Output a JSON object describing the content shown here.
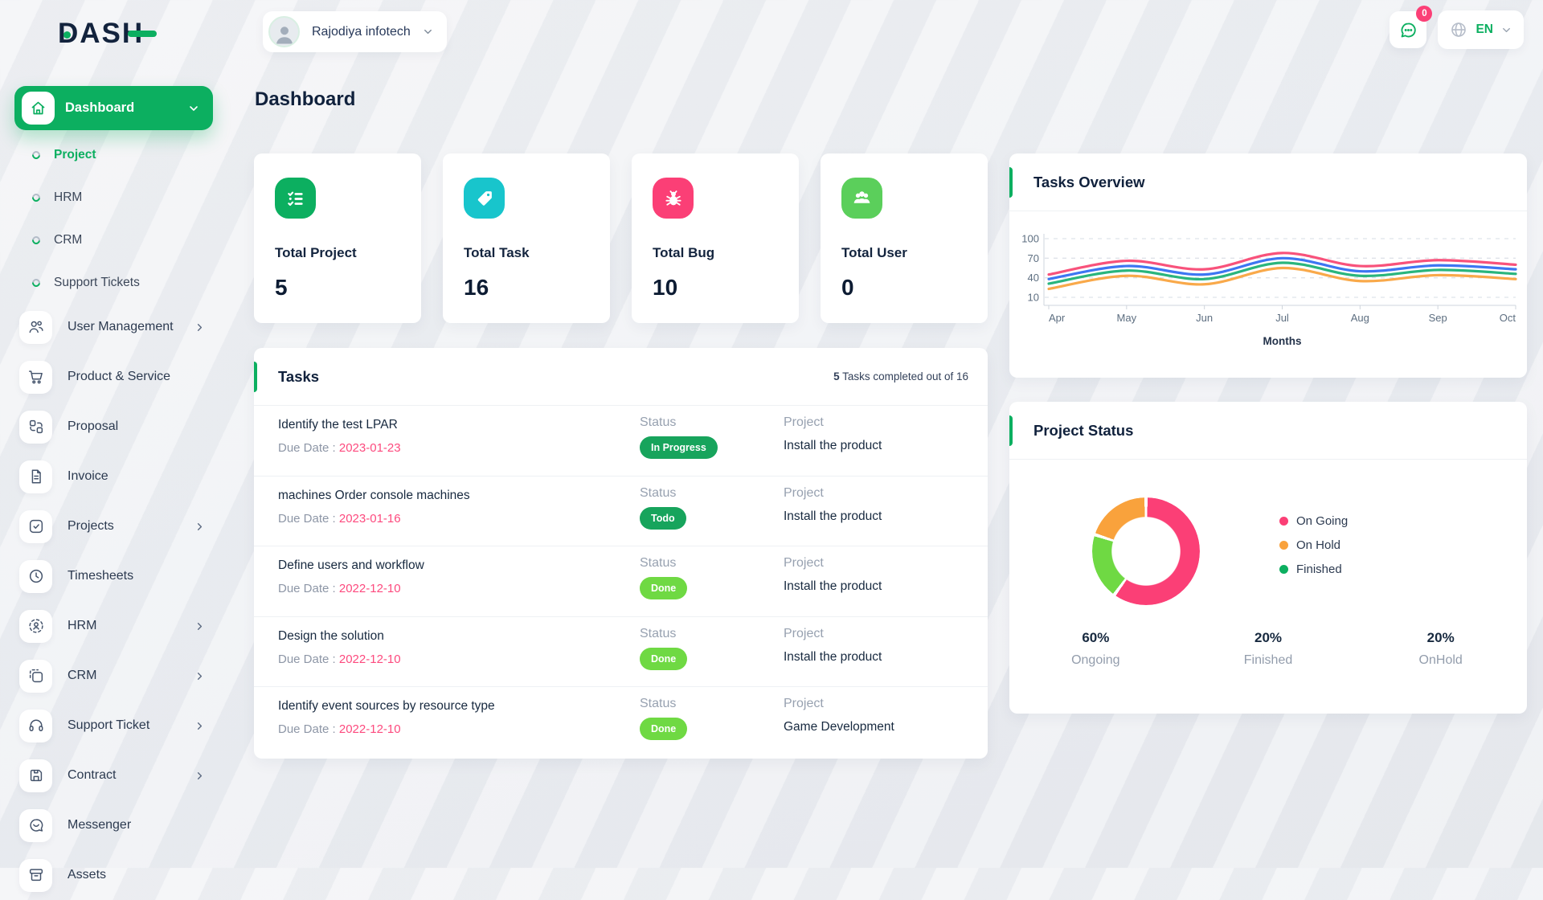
{
  "brand": {
    "name": "DASH"
  },
  "header": {
    "company": "Rajodiya infotech",
    "chat_badge": "0",
    "language": "EN"
  },
  "page": {
    "title": "Dashboard"
  },
  "sidebar": {
    "active": {
      "label": "Dashboard"
    },
    "sub_items": [
      {
        "label": "Project",
        "active": true
      },
      {
        "label": "HRM",
        "active": false
      },
      {
        "label": "CRM",
        "active": false
      },
      {
        "label": "Support Tickets",
        "active": false
      }
    ],
    "items": [
      {
        "label": "User Management",
        "icon": "users-outline-icon",
        "chevron": true
      },
      {
        "label": "Product & Service",
        "icon": "cart-icon",
        "chevron": false
      },
      {
        "label": "Proposal",
        "icon": "proposal-icon",
        "chevron": false
      },
      {
        "label": "Invoice",
        "icon": "invoice-icon",
        "chevron": false
      },
      {
        "label": "Projects",
        "icon": "projects-icon",
        "chevron": true
      },
      {
        "label": "Timesheets",
        "icon": "clock-icon",
        "chevron": false
      },
      {
        "label": "HRM",
        "icon": "hrm-icon",
        "chevron": true
      },
      {
        "label": "CRM",
        "icon": "crm-icon",
        "chevron": true
      },
      {
        "label": "Support Ticket",
        "icon": "headset-icon",
        "chevron": true
      },
      {
        "label": "Contract",
        "icon": "contract-icon",
        "chevron": true
      },
      {
        "label": "Messenger",
        "icon": "messenger-icon",
        "chevron": false
      },
      {
        "label": "Assets",
        "icon": "assets-icon",
        "chevron": false
      }
    ]
  },
  "stats": [
    {
      "label": "Total Project",
      "value": "5",
      "icon": "checklist-icon",
      "color": "#0caf60"
    },
    {
      "label": "Total Task",
      "value": "16",
      "icon": "tag-icon",
      "color": "#18c5cc"
    },
    {
      "label": "Total Bug",
      "value": "10",
      "icon": "bug-icon",
      "color": "#fb3f76"
    },
    {
      "label": "Total User",
      "value": "0",
      "icon": "users-icon",
      "color": "#5bcf5b"
    }
  ],
  "tasks": {
    "title": "Tasks",
    "summary_count": "5",
    "summary_rest": " Tasks completed out of 16",
    "due_prefix": "Due Date : ",
    "status_label": "Status",
    "project_label": "Project",
    "rows": [
      {
        "name": "Identify the test LPAR",
        "due": "2023-01-23",
        "status": "In Progress",
        "status_type": "progress",
        "project": "Install the product"
      },
      {
        "name": "machines Order console machines",
        "due": "2023-01-16",
        "status": "Todo",
        "status_type": "progress",
        "project": "Install the product"
      },
      {
        "name": "Define users and workflow",
        "due": "2022-12-10",
        "status": "Done",
        "status_type": "done",
        "project": "Install the product"
      },
      {
        "name": "Design the solution",
        "due": "2022-12-10",
        "status": "Done",
        "status_type": "done",
        "project": "Install the product"
      },
      {
        "name": "Identify event sources by resource type",
        "due": "2022-12-10",
        "status": "Done",
        "status_type": "done",
        "project": "Game Development"
      }
    ]
  },
  "chart_data": [
    {
      "type": "line",
      "title": "Tasks Overview",
      "x": [
        "Apr",
        "May",
        "Jun",
        "Jul",
        "Aug",
        "Sep",
        "Oct"
      ],
      "xlabel": "Months",
      "ylabel": "",
      "yticks": [
        10,
        40,
        70,
        100
      ],
      "ylim": [
        0,
        110
      ],
      "grid": true,
      "legend_position": "none",
      "series": [
        {
          "name": "series-pink",
          "color": "#f8527b",
          "values": [
            45,
            66,
            53,
            78,
            58,
            67,
            60
          ]
        },
        {
          "name": "series-blue",
          "color": "#3d76f2",
          "values": [
            38,
            58,
            45,
            70,
            50,
            59,
            53
          ]
        },
        {
          "name": "series-green",
          "color": "#2ab57d",
          "values": [
            31,
            51,
            38,
            63,
            43,
            52,
            46
          ]
        },
        {
          "name": "series-orange",
          "color": "#f9a94a",
          "values": [
            23,
            43,
            30,
            55,
            35,
            44,
            38
          ]
        }
      ]
    },
    {
      "type": "pie",
      "title": "Project Status",
      "donut": true,
      "slices": [
        {
          "label": "On Going",
          "value": 60,
          "color": "#fb3f76"
        },
        {
          "label": "Finished",
          "value": 20,
          "color": "#6fd943"
        },
        {
          "label": "On Hold",
          "value": 20,
          "color": "#f9a23c"
        }
      ],
      "legend": [
        {
          "label": "On Going",
          "color": "#fb3f76"
        },
        {
          "label": "On Hold",
          "color": "#f9a23c"
        },
        {
          "label": "Finished",
          "color": "#0caf60"
        }
      ],
      "legend_position": "right",
      "footer": [
        {
          "pct": "60%",
          "label": "Ongoing"
        },
        {
          "pct": "20%",
          "label": "Finished"
        },
        {
          "pct": "20%",
          "label": "OnHold"
        }
      ]
    }
  ]
}
